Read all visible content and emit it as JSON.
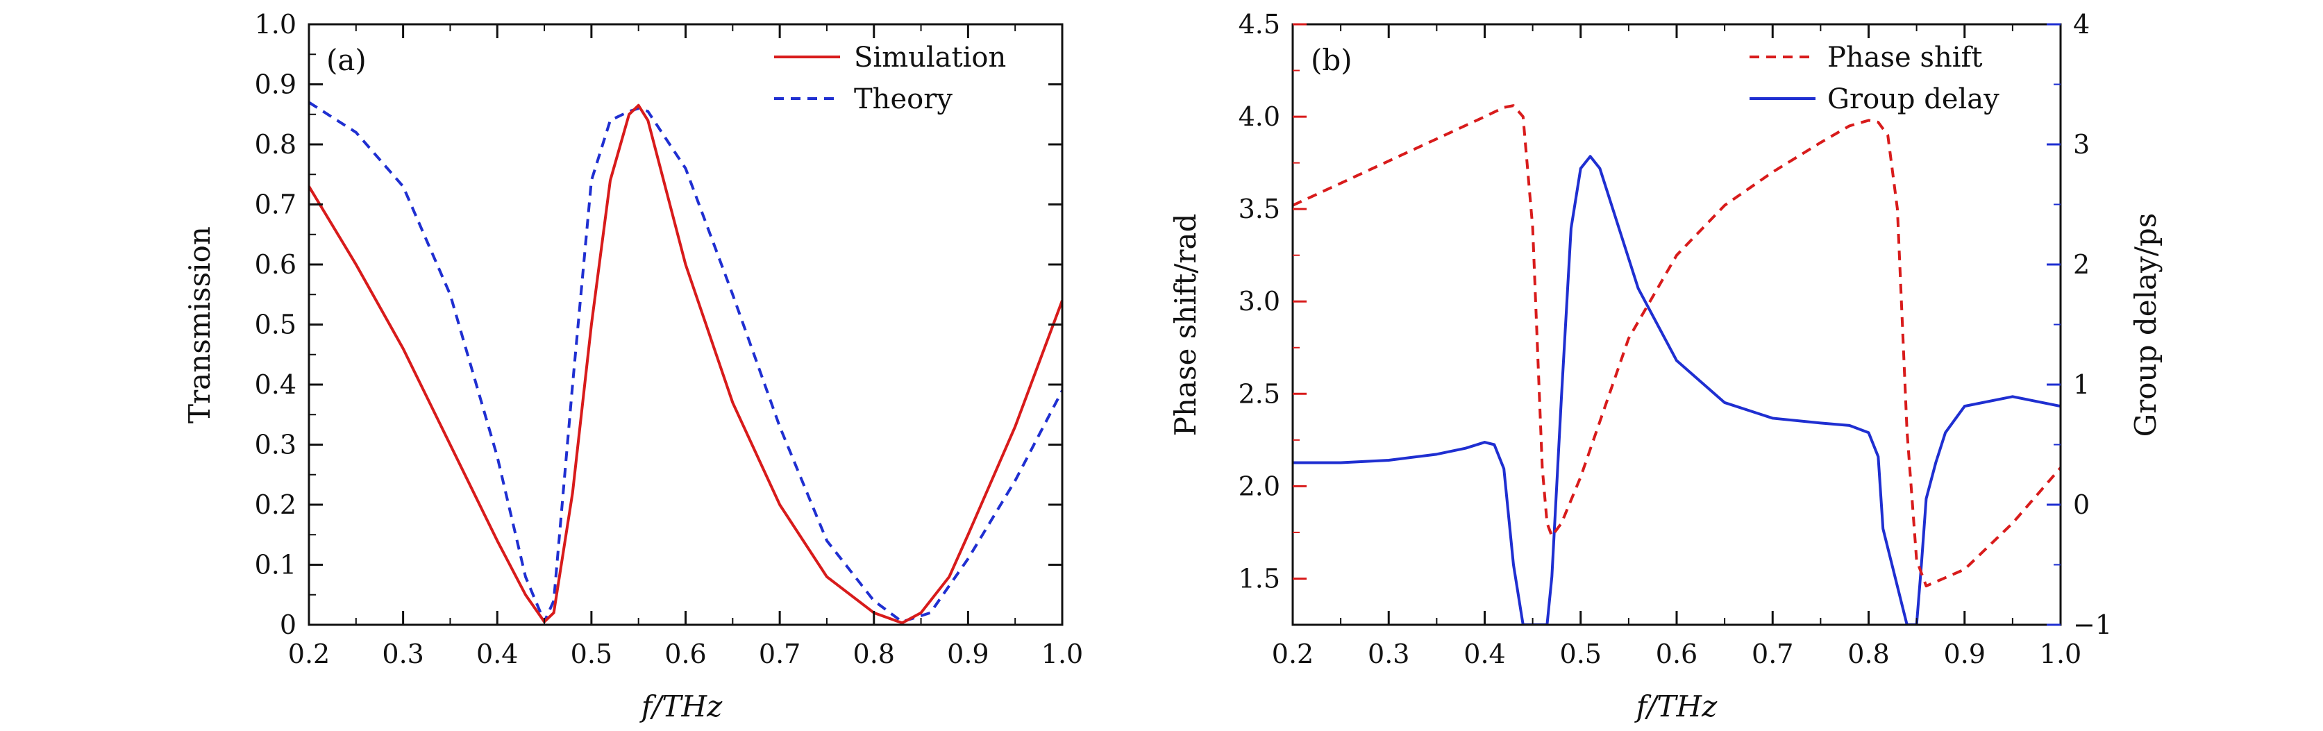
{
  "colors": {
    "simulation": "#d81b1b",
    "theory": "#1f2fd1",
    "phase_shift": "#d81b1b",
    "group_delay": "#1f2fd1",
    "axis": "#111111",
    "left_axis_b": "#d81b1b",
    "right_axis_b": "#1f2fd1"
  },
  "chart_data": [
    {
      "type": "line",
      "panel_label": "(a)",
      "xlabel": "f/THz",
      "ylabel": "Transmission",
      "xlim": [
        0.2,
        1.0
      ],
      "ylim": [
        0,
        1.0
      ],
      "x_ticks": [
        0.2,
        0.3,
        0.4,
        0.5,
        0.6,
        0.7,
        0.8,
        0.9,
        1.0
      ],
      "x_tick_labels": [
        "0.2",
        "0.3",
        "0.4",
        "0.5",
        "0.6",
        "0.7",
        "0.8",
        "0.9",
        "1.0"
      ],
      "y_ticks": [
        0,
        0.1,
        0.2,
        0.3,
        0.4,
        0.5,
        0.6,
        0.7,
        0.8,
        0.9,
        1.0
      ],
      "y_tick_labels": [
        "0",
        "0.1",
        "0.2",
        "0.3",
        "0.4",
        "0.5",
        "0.6",
        "0.7",
        "0.8",
        "0.9",
        "1.0"
      ],
      "grid": false,
      "legend_position": "top-right",
      "series": [
        {
          "name": "Simulation",
          "style": "solid",
          "color": "#d81b1b",
          "x": [
            0.2,
            0.25,
            0.3,
            0.35,
            0.4,
            0.43,
            0.45,
            0.46,
            0.48,
            0.5,
            0.52,
            0.54,
            0.55,
            0.56,
            0.58,
            0.6,
            0.65,
            0.7,
            0.75,
            0.8,
            0.83,
            0.85,
            0.88,
            0.9,
            0.95,
            1.0
          ],
          "y": [
            0.73,
            0.6,
            0.46,
            0.3,
            0.14,
            0.05,
            0.005,
            0.02,
            0.22,
            0.5,
            0.74,
            0.85,
            0.865,
            0.84,
            0.72,
            0.6,
            0.37,
            0.2,
            0.08,
            0.02,
            0.003,
            0.02,
            0.08,
            0.15,
            0.33,
            0.54
          ]
        },
        {
          "name": "Theory",
          "style": "dashed",
          "color": "#1f2fd1",
          "x": [
            0.2,
            0.25,
            0.3,
            0.35,
            0.4,
            0.43,
            0.45,
            0.46,
            0.48,
            0.5,
            0.52,
            0.54,
            0.55,
            0.56,
            0.6,
            0.65,
            0.7,
            0.75,
            0.8,
            0.83,
            0.86,
            0.9,
            0.95,
            1.0
          ],
          "y": [
            0.87,
            0.82,
            0.73,
            0.55,
            0.28,
            0.08,
            0.005,
            0.04,
            0.4,
            0.74,
            0.84,
            0.855,
            0.86,
            0.855,
            0.76,
            0.55,
            0.33,
            0.14,
            0.04,
            0.005,
            0.02,
            0.11,
            0.24,
            0.39
          ]
        }
      ]
    },
    {
      "type": "line",
      "panel_label": "(b)",
      "xlabel": "f/THz",
      "ylabel_left": "Phase shift/rad",
      "ylabel_right": "Group delay/ps",
      "xlim": [
        0.2,
        1.0
      ],
      "ylim_left": [
        1.25,
        4.5
      ],
      "ylim_right": [
        -1,
        4
      ],
      "x_ticks": [
        0.2,
        0.3,
        0.4,
        0.5,
        0.6,
        0.7,
        0.8,
        0.9,
        1.0
      ],
      "x_tick_labels": [
        "0.2",
        "0.3",
        "0.4",
        "0.5",
        "0.6",
        "0.7",
        "0.8",
        "0.9",
        "1.0"
      ],
      "y_left_ticks": [
        1.5,
        2.0,
        2.5,
        3.0,
        3.5,
        4.0,
        4.5
      ],
      "y_left_tick_labels": [
        "1.5",
        "2.0",
        "2.5",
        "3.0",
        "3.5",
        "4.0",
        "4.5"
      ],
      "y_right_ticks": [
        -1,
        0,
        1,
        2,
        3,
        4
      ],
      "y_right_tick_labels": [
        "−1",
        "0",
        "1",
        "2",
        "3",
        "4"
      ],
      "grid": false,
      "legend_position": "top-right",
      "series": [
        {
          "name": "Phase shift",
          "axis": "left",
          "style": "dashed",
          "color": "#d81b1b",
          "x": [
            0.2,
            0.25,
            0.3,
            0.35,
            0.4,
            0.42,
            0.43,
            0.44,
            0.45,
            0.46,
            0.465,
            0.47,
            0.48,
            0.5,
            0.52,
            0.55,
            0.6,
            0.65,
            0.7,
            0.75,
            0.78,
            0.8,
            0.81,
            0.82,
            0.83,
            0.84,
            0.85,
            0.86,
            0.9,
            0.95,
            1.0
          ],
          "y": [
            3.52,
            3.64,
            3.76,
            3.88,
            4.0,
            4.05,
            4.06,
            4.0,
            3.4,
            2.1,
            1.8,
            1.73,
            1.8,
            2.05,
            2.35,
            2.8,
            3.25,
            3.52,
            3.7,
            3.86,
            3.95,
            3.98,
            3.97,
            3.9,
            3.5,
            2.3,
            1.6,
            1.46,
            1.55,
            1.8,
            2.1
          ]
        },
        {
          "name": "Group delay",
          "axis": "right",
          "style": "solid",
          "color": "#1f2fd1",
          "x": [
            0.2,
            0.25,
            0.3,
            0.35,
            0.38,
            0.4,
            0.41,
            0.42,
            0.43,
            0.44,
            0.455,
            0.465,
            0.47,
            0.48,
            0.49,
            0.5,
            0.51,
            0.52,
            0.54,
            0.56,
            0.6,
            0.65,
            0.7,
            0.75,
            0.78,
            0.8,
            0.81,
            0.815,
            0.84,
            0.85,
            0.855,
            0.86,
            0.87,
            0.88,
            0.9,
            0.95,
            1.0
          ],
          "y": [
            0.35,
            0.35,
            0.37,
            0.42,
            0.47,
            0.52,
            0.5,
            0.3,
            -0.5,
            -1.0,
            -1.0,
            -1.0,
            -0.6,
            0.9,
            2.3,
            2.8,
            2.9,
            2.8,
            2.3,
            1.8,
            1.2,
            0.85,
            0.72,
            0.68,
            0.66,
            0.6,
            0.4,
            -0.2,
            -1.0,
            -1.0,
            -0.5,
            0.05,
            0.35,
            0.6,
            0.82,
            0.9,
            0.82
          ]
        }
      ]
    }
  ]
}
